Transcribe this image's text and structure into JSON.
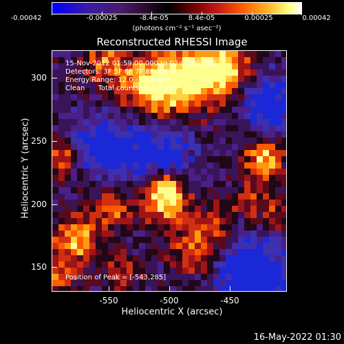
{
  "colorbar": {
    "ticks": [
      "-0.00042",
      "-0.00025",
      "-8.4e-05",
      "8.4e-05",
      "0.00025",
      "0.00042"
    ],
    "unit": "(photons cm⁻² s⁻¹ asec⁻²)",
    "colors": [
      "#0000ff",
      "#4a1a6a",
      "#000000",
      "#c01818",
      "#ff5a00",
      "#ffff80",
      "#ffffff"
    ]
  },
  "title": "Reconstructed RHESSI Image",
  "info": {
    "time": "15-Nov-2012 01:59:00.000 to 02:01:00.000",
    "detectors": "Detectors: 3F 5F 6F 7F 8F, Att 0",
    "energy": "Energy Range: 12.0 - 25.0 keV",
    "clean": "Clean      Total counts: 5.22E+03",
    "peak": "Position of Peak = [-543,285]"
  },
  "axes": {
    "xlabel": "Heliocentric X (arcsec)",
    "ylabel": "Heliocentric Y (arcsec)",
    "xticks": [
      "-550",
      "-500",
      "-450"
    ],
    "yticks": [
      "300",
      "250",
      "200",
      "150"
    ]
  },
  "timestamp": "16-May-2022 01:30"
}
